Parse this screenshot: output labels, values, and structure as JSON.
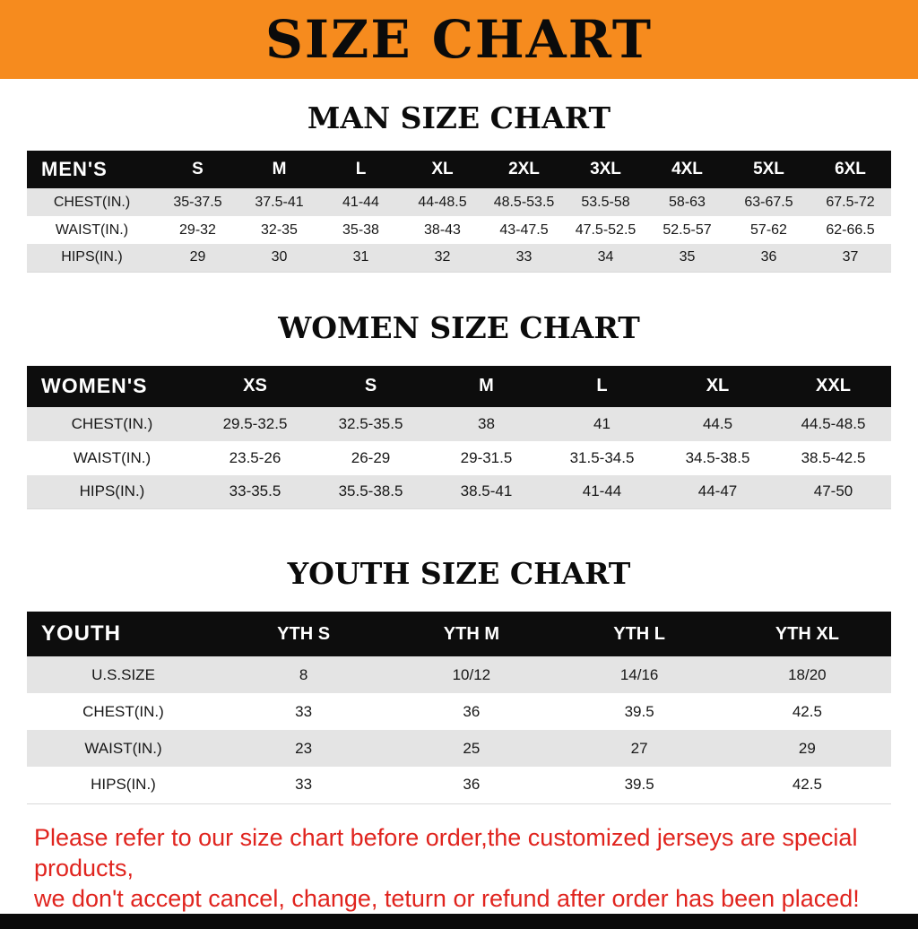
{
  "page": {
    "banner_title": "SIZE CHART",
    "footer_line1": "Please refer to our size chart before order,the customized jerseys are special products,",
    "footer_line2": "we don't accept cancel, change, teturn or refund after order has been placed!"
  },
  "colors": {
    "banner_orange": "#f68b1e",
    "header_black": "#0d0d0d",
    "stripe_gray": "#e4e4e4",
    "disclaimer_red": "#e0241e"
  },
  "chart_data": [
    {
      "type": "table",
      "title": "MAN SIZE CHART",
      "corner_label": "MEN'S",
      "columns": [
        "S",
        "M",
        "L",
        "XL",
        "2XL",
        "3XL",
        "4XL",
        "5XL",
        "6XL"
      ],
      "rows": [
        {
          "label": "CHEST(IN.)",
          "values": [
            "35-37.5",
            "37.5-41",
            "41-44",
            "44-48.5",
            "48.5-53.5",
            "53.5-58",
            "58-63",
            "63-67.5",
            "67.5-72"
          ]
        },
        {
          "label": "WAIST(IN.)",
          "values": [
            "29-32",
            "32-35",
            "35-38",
            "38-43",
            "43-47.5",
            "47.5-52.5",
            "52.5-57",
            "57-62",
            "62-66.5"
          ]
        },
        {
          "label": "HIPS(IN.)",
          "values": [
            "29",
            "30",
            "31",
            "32",
            "33",
            "34",
            "35",
            "36",
            "37"
          ]
        }
      ]
    },
    {
      "type": "table",
      "title": "WOMEN SIZE CHART",
      "corner_label": "WOMEN'S",
      "columns": [
        "XS",
        "S",
        "M",
        "L",
        "XL",
        "XXL"
      ],
      "rows": [
        {
          "label": "CHEST(IN.)",
          "values": [
            "29.5-32.5",
            "32.5-35.5",
            "38",
            "41",
            "44.5",
            "44.5-48.5"
          ]
        },
        {
          "label": "WAIST(IN.)",
          "values": [
            "23.5-26",
            "26-29",
            "29-31.5",
            "31.5-34.5",
            "34.5-38.5",
            "38.5-42.5"
          ]
        },
        {
          "label": "HIPS(IN.)",
          "values": [
            "33-35.5",
            "35.5-38.5",
            "38.5-41",
            "41-44",
            "44-47",
            "47-50"
          ]
        }
      ]
    },
    {
      "type": "table",
      "title": "YOUTH SIZE CHART",
      "corner_label": "YOUTH",
      "columns": [
        "YTH S",
        "YTH M",
        "YTH L",
        "YTH XL"
      ],
      "rows": [
        {
          "label": "U.S.SIZE",
          "values": [
            "8",
            "10/12",
            "14/16",
            "18/20"
          ]
        },
        {
          "label": "CHEST(IN.)",
          "values": [
            "33",
            "36",
            "39.5",
            "42.5"
          ]
        },
        {
          "label": "WAIST(IN.)",
          "values": [
            "23",
            "25",
            "27",
            "29"
          ]
        },
        {
          "label": "HIPS(IN.)",
          "values": [
            "33",
            "36",
            "39.5",
            "42.5"
          ]
        }
      ]
    }
  ]
}
